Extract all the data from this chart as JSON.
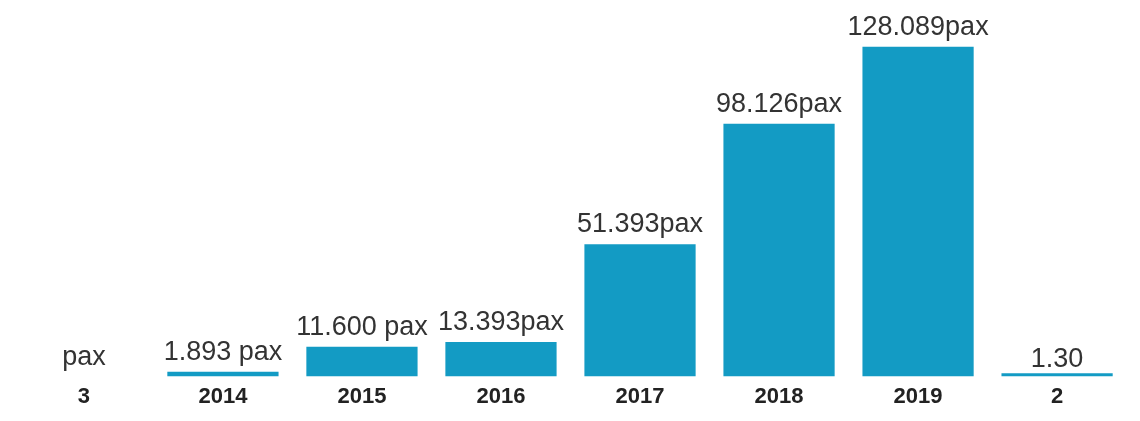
{
  "chart_data": {
    "type": "bar",
    "categories": [
      "3",
      "2014",
      "2015",
      "2016",
      "2017",
      "2018",
      "2019",
      "2"
    ],
    "values": [
      null,
      1.893,
      11.6,
      13.393,
      51.393,
      98.126,
      128.089,
      1.3
    ],
    "value_labels": [
      "pax",
      "1.893 pax",
      "11.600 pax",
      "13.393pax",
      "51.393pax",
      "98.126pax",
      "128.089pax",
      "1.30"
    ],
    "color": "#139bc4",
    "grid": false
  }
}
